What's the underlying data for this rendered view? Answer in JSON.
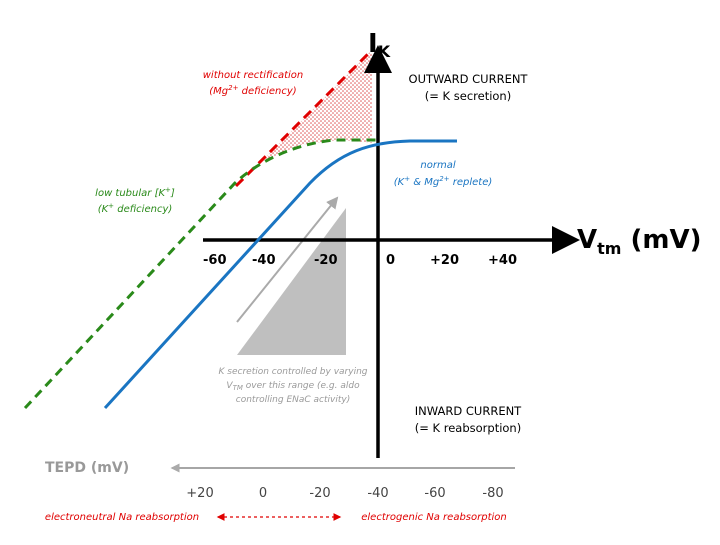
{
  "axes": {
    "y_label_main": "I",
    "y_label_sub": "K",
    "x_label_main": "V",
    "x_label_sub": "tm",
    "x_label_unit": " (mV)",
    "x_ticks": [
      "-60",
      "-40",
      "-20",
      "0",
      "+20",
      "+40"
    ]
  },
  "quadrants": {
    "outward_line1": "OUTWARD CURRENT",
    "outward_line2": "(= K secretion)",
    "inward_line1": "INWARD CURRENT",
    "inward_line2": "(= K reabsorption)"
  },
  "curves": {
    "without_rectification_line1": "without rectification",
    "without_rectification_line2_a": "(Mg",
    "without_rectification_line2_sup": "2+",
    "without_rectification_line2_b": " deficiency)",
    "low_tubular_line1_a": "low tubular [K",
    "low_tubular_line1_sup": "+",
    "low_tubular_line1_b": "]",
    "low_tubular_line2_a": "(K",
    "low_tubular_line2_sup": "+",
    "low_tubular_line2_b": " deficiency)",
    "normal_line1": "normal",
    "normal_line2_a": "(K",
    "normal_line2_sup1": "+",
    "normal_line2_b": " & Mg",
    "normal_line2_sup2": "2+",
    "normal_line2_c": " replete)"
  },
  "range_note": {
    "line1": "K secretion controlled by varying",
    "line2_a": "V",
    "line2_sub": "TM",
    "line2_b": " over this range (e.g. aldo",
    "line3": "controlling ENaC activity)"
  },
  "tepd": {
    "label": "TEPD (mV)",
    "ticks": [
      "+20",
      "0",
      "-20",
      "-40",
      "-60",
      "-80"
    ],
    "left_note": "electroneutral Na reabsorption",
    "right_note": "electrogenic Na reabsorption"
  },
  "colors": {
    "red": "#e00000",
    "green": "#2a8a1a",
    "blue": "#1a75c2",
    "gray": "#bdbdbd"
  }
}
